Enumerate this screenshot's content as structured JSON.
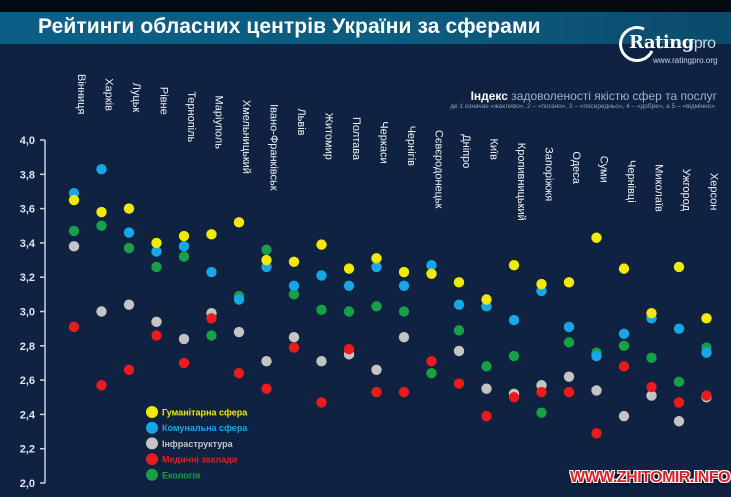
{
  "header": {
    "title": "Рейтинги обласних центрів України за сферами",
    "logo_name": "Rating",
    "logo_suffix": "pro",
    "logo_url": "www.ratingpro.org"
  },
  "index_title_bold": "Індекс",
  "index_title_rest": " задоволеності якістю сфер та послуг",
  "index_subtitle": "де 1 означає «жахливо», 2 – «погано», 3 – «посередньо», 4 – «добре», а 5 – «відмінно»",
  "watermark": "WWW.ZHITOMIR.INFO",
  "chart_data": {
    "type": "scatter",
    "title": "Рейтинги обласних центрів України за сферами",
    "subtitle": "Індекс задоволеності якістю сфер та послуг",
    "xlabel": "",
    "ylabel": "",
    "ylim": [
      2.0,
      4.0
    ],
    "yticks": [
      "4,0",
      "3,8",
      "3,6",
      "3,4",
      "3,2",
      "3,0",
      "2,8",
      "2,6",
      "2,4",
      "2,2",
      "2,0"
    ],
    "ytick_values": [
      4.0,
      3.8,
      3.6,
      3.4,
      3.2,
      3.0,
      2.8,
      2.6,
      2.4,
      2.2,
      2.0
    ],
    "grid": false,
    "legend_position": "bottom-left",
    "categories": [
      "Вінниця",
      "Харків",
      "Луцьк",
      "Рівне",
      "Тернопіль",
      "Маріуполь",
      "Хмельницький",
      "Івано-Франківськ",
      "Львів",
      "Житомир",
      "Полтава",
      "Черкаси",
      "Чернігів",
      "Сєвєродонецьк",
      "Дніпро",
      "Київ",
      "Кропивницький",
      "Запоріжжя",
      "Одеса",
      "Суми",
      "Чернівці",
      "Миколаїв",
      "Ужгород",
      "Херсон"
    ],
    "series": [
      {
        "name": "Гуманітарна сфера",
        "color": "#f2ea00",
        "values": [
          3.65,
          3.58,
          3.6,
          3.4,
          3.44,
          3.45,
          3.52,
          3.3,
          3.29,
          3.39,
          3.25,
          3.31,
          3.23,
          3.22,
          3.17,
          3.07,
          3.27,
          3.16,
          3.17,
          3.43,
          3.25,
          2.99,
          3.26,
          2.96
        ]
      },
      {
        "name": "Комунальна сфера",
        "color": "#18a6e6",
        "values": [
          3.69,
          3.83,
          3.46,
          3.35,
          3.38,
          3.23,
          3.07,
          3.26,
          3.15,
          3.21,
          3.15,
          3.26,
          3.15,
          3.27,
          3.04,
          3.03,
          2.95,
          3.12,
          2.91,
          2.74,
          2.87,
          2.96,
          2.9,
          2.76
        ]
      },
      {
        "name": "Інфраструктура",
        "color": "#c4c4c4",
        "values": [
          3.38,
          3.0,
          3.04,
          2.94,
          2.84,
          2.99,
          2.88,
          2.71,
          2.85,
          2.71,
          2.75,
          2.66,
          2.85,
          null,
          2.77,
          2.55,
          2.52,
          2.57,
          2.62,
          2.54,
          2.39,
          2.51,
          2.36,
          2.5
        ]
      },
      {
        "name": "Медичні заклади",
        "color": "#ec1b1b",
        "values": [
          2.91,
          2.57,
          2.66,
          2.86,
          2.7,
          2.96,
          2.64,
          2.55,
          2.79,
          2.47,
          2.78,
          2.53,
          2.53,
          2.71,
          2.58,
          2.39,
          2.5,
          2.53,
          2.53,
          2.29,
          2.68,
          2.56,
          2.47,
          2.51
        ]
      },
      {
        "name": "Екологія",
        "color": "#17a048",
        "values": [
          3.47,
          3.5,
          3.37,
          3.26,
          3.32,
          2.86,
          3.09,
          3.36,
          3.1,
          3.01,
          3.0,
          3.03,
          3.0,
          2.64,
          2.89,
          2.68,
          2.74,
          2.41,
          2.82,
          2.76,
          2.8,
          2.73,
          2.59,
          2.79
        ]
      }
    ]
  }
}
